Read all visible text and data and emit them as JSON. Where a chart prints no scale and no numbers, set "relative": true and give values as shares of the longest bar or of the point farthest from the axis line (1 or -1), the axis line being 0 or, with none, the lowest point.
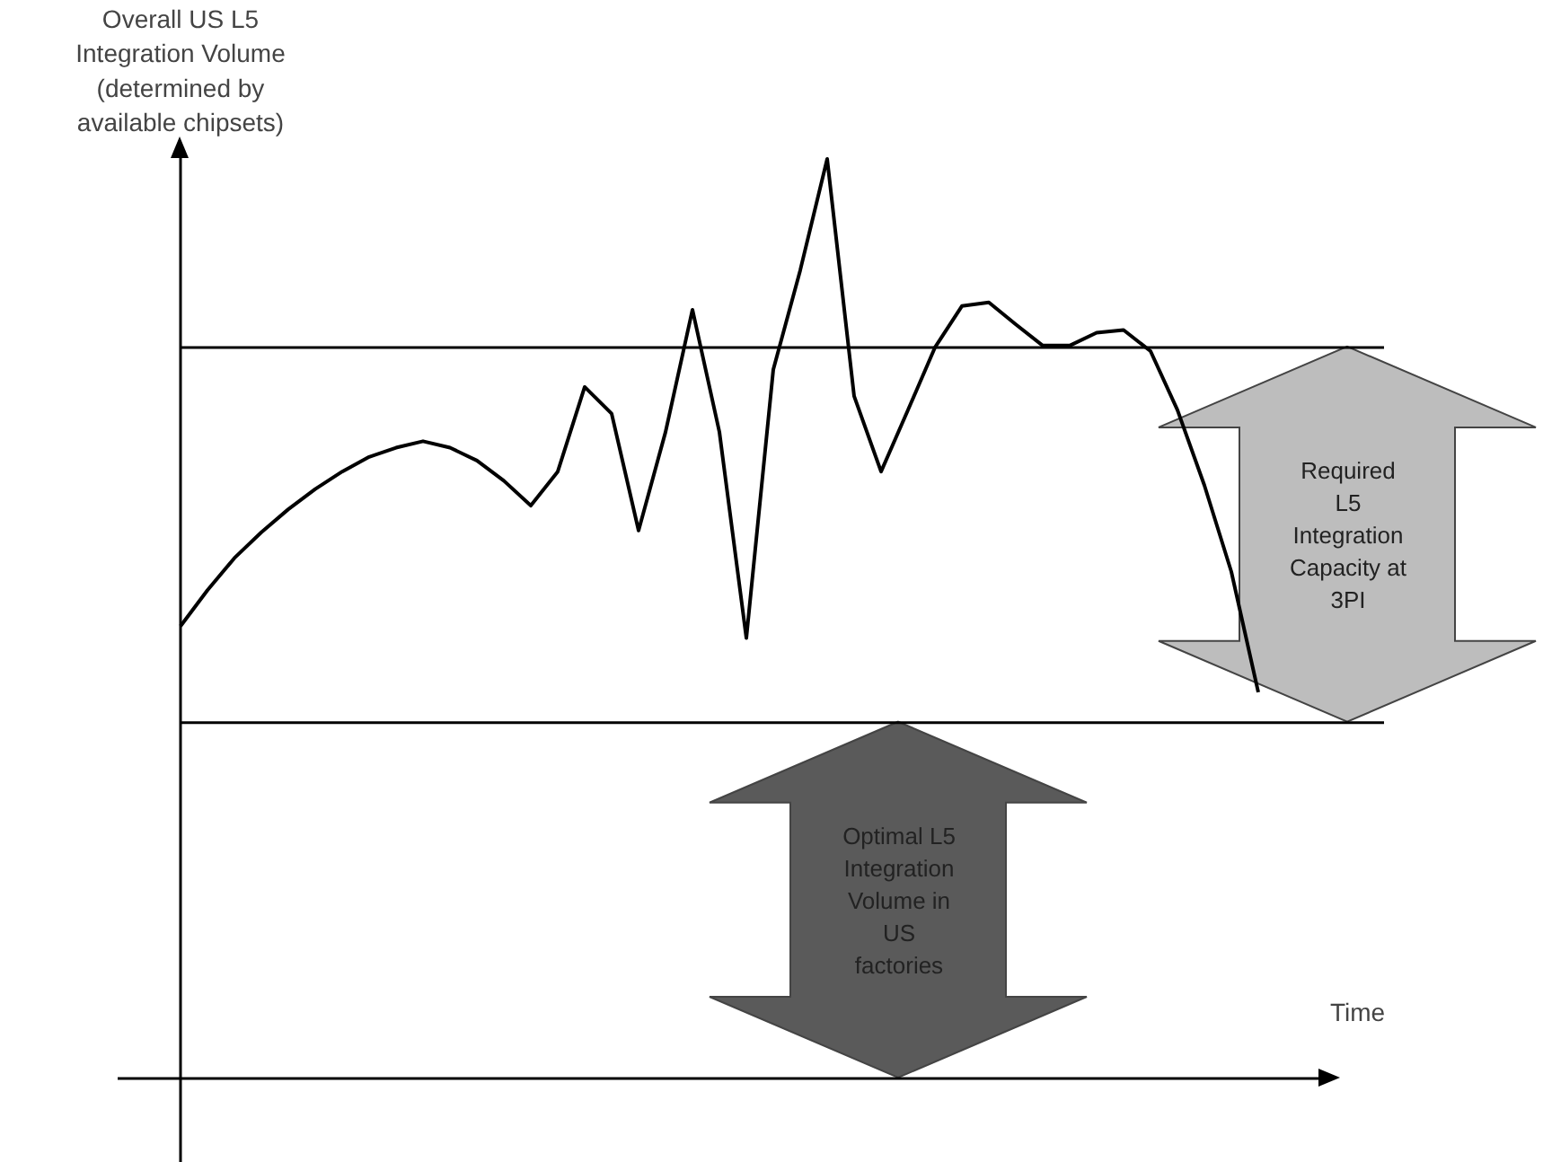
{
  "chart_data": {
    "type": "line",
    "relative": true,
    "ylabel": "Overall US L5\nIntegration Volume\n(determined by\navailable chipsets)",
    "xlabel": "Time",
    "categories": [
      null,
      null,
      null,
      null,
      null,
      null,
      null,
      null,
      null,
      null,
      null,
      null,
      null,
      null,
      null,
      null,
      null,
      null,
      null,
      null,
      null,
      null,
      null,
      null,
      null,
      null,
      null,
      null,
      null,
      null,
      null,
      null,
      null,
      null,
      null,
      null,
      null,
      null,
      null,
      null,
      null
    ],
    "series": [
      {
        "color": "#000000",
        "values": [
          0.492,
          0.531,
          0.566,
          0.594,
          0.619,
          0.641,
          0.66,
          0.676,
          0.686,
          0.693,
          0.686,
          0.672,
          0.65,
          0.623,
          0.66,
          0.752,
          0.723,
          0.596,
          0.703,
          0.836,
          0.703,
          0.479,
          0.771,
          0.879,
          1.0,
          0.742,
          0.66,
          0.727,
          0.795,
          0.84,
          0.844,
          0.82,
          0.797,
          0.797,
          0.811,
          0.814,
          0.791,
          0.727,
          0.645,
          0.551,
          0.42
        ]
      }
    ],
    "ref_lines": [
      {
        "axis": "y",
        "value": 0.795,
        "color": "#000000"
      },
      {
        "axis": "y",
        "value": 0.387,
        "color": "#000000"
      }
    ],
    "annotations": [
      "Required\nL5\nIntegration\nCapacity at\n3PI",
      "Optimal L5\nIntegration\nVolume in\nUS\nfactories"
    ],
    "marker": "none",
    "line_style": "solid",
    "grid": false
  }
}
